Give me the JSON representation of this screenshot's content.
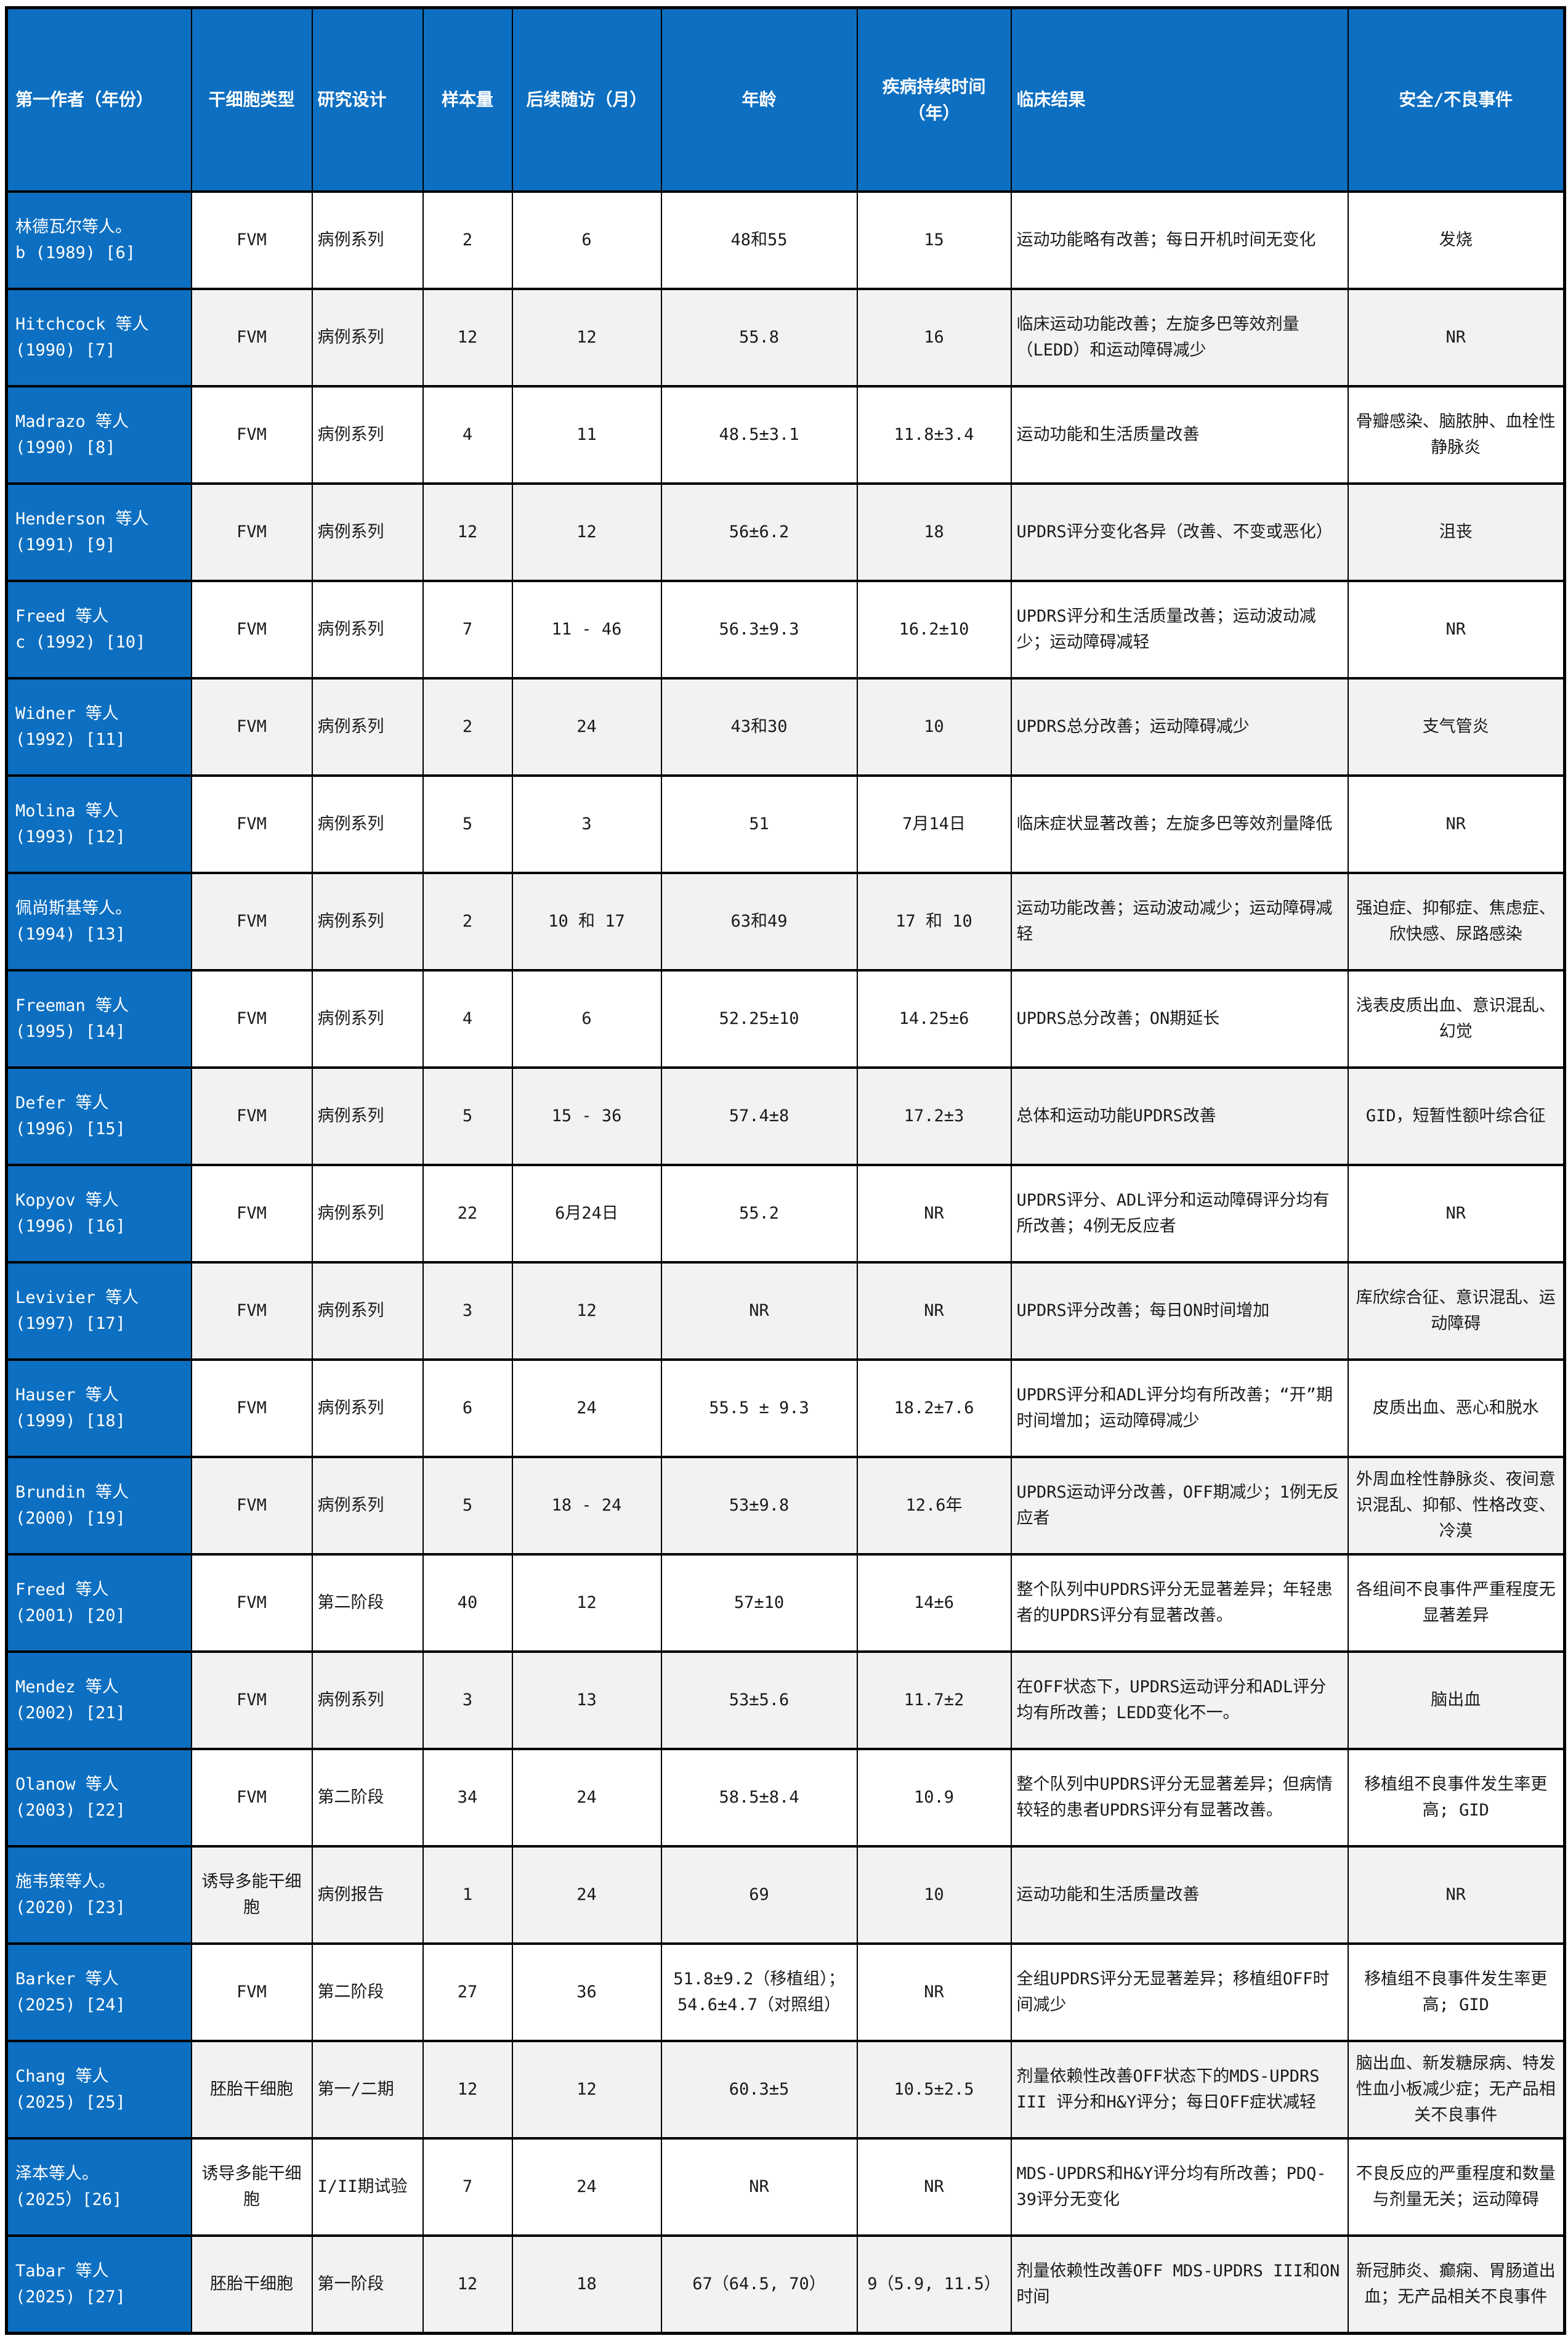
{
  "table": {
    "colors": {
      "header_bg": "#0d6fc1",
      "row_alt_bg": "#f2f2f2",
      "border": "#000000",
      "body_text": "#1a1a1a",
      "header_text": "#ffffff"
    },
    "headers": [
      "第一作者（年份）",
      "干细胞类型",
      "研究设计",
      "样本量",
      "后续随访（月）",
      "年龄",
      "疾病持续时间\n（年）",
      "临床结果",
      "安全/不良事件"
    ],
    "rows": [
      [
        "林德瓦尔等人。\nb (1989) [6]",
        "FVM",
        "病例系列",
        "2",
        "6",
        "48和55",
        "15",
        "运动功能略有改善；每日开机时间无变化",
        "发烧"
      ],
      [
        "Hitchcock 等人\n(1990) [7]",
        "FVM",
        "病例系列",
        "12",
        "12",
        "55.8",
        "16",
        "临床运动功能改善；左旋多巴等效剂量（LEDD）和运动障碍减少",
        "NR"
      ],
      [
        "Madrazo 等人\n(1990) [8]",
        "FVM",
        "病例系列",
        "4",
        "11",
        "48.5±3.1",
        "11.8±3.4",
        "运动功能和生活质量改善",
        "骨瓣感染、脑脓肿、血栓性静脉炎"
      ],
      [
        "Henderson 等人\n(1991) [9]",
        "FVM",
        "病例系列",
        "12",
        "12",
        "56±6.2",
        "18",
        "UPDRS评分变化各异（改善、不变或恶化）",
        "沮丧"
      ],
      [
        "Freed 等人\nc (1992) [10]",
        "FVM",
        "病例系列",
        "7",
        "11 - 46",
        "56.3±9.3",
        "16.2±10",
        "UPDRS评分和生活质量改善；运动波动减少；运动障碍减轻",
        "NR"
      ],
      [
        "Widner 等人\n(1992) [11]",
        "FVM",
        "病例系列",
        "2",
        "24",
        "43和30",
        "10",
        "UPDRS总分改善；运动障碍减少",
        "支气管炎"
      ],
      [
        "Molina 等人\n(1993) [12]",
        "FVM",
        "病例系列",
        "5",
        "3",
        "51",
        "7月14日",
        "临床症状显著改善；左旋多巴等效剂量降低",
        "NR"
      ],
      [
        "佩尚斯基等人。\n(1994) [13]",
        "FVM",
        "病例系列",
        "2",
        "10 和 17",
        "63和49",
        "17 和 10",
        "运动功能改善；运动波动减少；运动障碍减轻",
        "强迫症、抑郁症、焦虑症、欣快感、尿路感染"
      ],
      [
        "Freeman 等人\n(1995) [14]",
        "FVM",
        "病例系列",
        "4",
        "6",
        "52.25±10",
        "14.25±6",
        "UPDRS总分改善；ON期延长",
        "浅表皮质出血、意识混乱、幻觉"
      ],
      [
        "Defer 等人\n(1996) [15]",
        "FVM",
        "病例系列",
        "5",
        "15 - 36",
        "57.4±8",
        "17.2±3",
        "总体和运动功能UPDRS改善",
        "GID，短暂性额叶综合征"
      ],
      [
        "Kopyov 等人\n(1996) [16]",
        "FVM",
        "病例系列",
        "22",
        "6月24日",
        "55.2",
        "NR",
        "UPDRS评分、ADL评分和运动障碍评分均有所改善；4例无反应者",
        "NR"
      ],
      [
        "Levivier 等人\n(1997) [17]",
        "FVM",
        "病例系列",
        "3",
        "12",
        "NR",
        "NR",
        "UPDRS评分改善；每日ON时间增加",
        "库欣综合征、意识混乱、运动障碍"
      ],
      [
        "Hauser 等人\n(1999) [18]",
        "FVM",
        "病例系列",
        "6",
        "24",
        "55.5 ± 9.3",
        "18.2±7.6",
        "UPDRS评分和ADL评分均有所改善；“开”期时间增加；运动障碍减少",
        "皮质出血、恶心和脱水"
      ],
      [
        "Brundin 等人\n(2000) [19]",
        "FVM",
        "病例系列",
        "5",
        "18 - 24",
        "53±9.8",
        "12.6年",
        "UPDRS运动评分改善，OFF期减少；1例无反应者",
        "外周血栓性静脉炎、夜间意识混乱、抑郁、性格改变、冷漠"
      ],
      [
        "Freed 等人\n(2001) [20]",
        "FVM",
        "第二阶段",
        "40",
        "12",
        "57±10",
        "14±6",
        "整个队列中UPDRS评分无显著差异；年轻患者的UPDRS评分有显著改善。",
        "各组间不良事件严重程度无显著差异"
      ],
      [
        "Mendez 等人\n(2002) [21]",
        "FVM",
        "病例系列",
        "3",
        "13",
        "53±5.6",
        "11.7±2",
        "在OFF状态下，UPDRS运动评分和ADL评分均有所改善；LEDD变化不一。",
        "脑出血"
      ],
      [
        "Olanow 等人\n(2003) [22]",
        "FVM",
        "第二阶段",
        "34",
        "24",
        "58.5±8.4",
        "10.9",
        "整个队列中UPDRS评分无显著差异；但病情较轻的患者UPDRS评分有显著改善。",
        "移植组不良事件发生率更高; GID"
      ],
      [
        "施韦策等人。\n(2020) [23]",
        "诱导多能干细胞",
        "病例报告",
        "1",
        "24",
        "69",
        "10",
        "运动功能和生活质量改善",
        "NR"
      ],
      [
        "Barker 等人\n(2025) [24]",
        "FVM",
        "第二阶段",
        "27",
        "36",
        "51.8±9.2（移植组）；54.6±4.7（对照组）",
        "NR",
        "全组UPDRS评分无显著差异；移植组OFF时间减少",
        "移植组不良事件发生率更高; GID"
      ],
      [
        "Chang 等人\n(2025) [25]",
        "胚胎干细胞",
        "第一/二期",
        "12",
        "12",
        "60.3±5",
        "10.5±2.5",
        "剂量依赖性改善OFF状态下的MDS-UPDRS III 评分和H&Y评分；每日OFF症状减轻",
        "脑出血、新发糖尿病、特发性血小板减少症；无产品相关不良事件"
      ],
      [
        "泽本等人。\n(2025）[26]",
        "诱导多能干细胞",
        "I/II期试验",
        "7",
        "24",
        "NR",
        "NR",
        "MDS-UPDRS和H&Y评分均有所改善；PDQ-39评分无变化",
        "不良反应的严重程度和数量与剂量无关；运动障碍"
      ],
      [
        "Tabar 等人\n(2025) [27]",
        "胚胎干细胞",
        "第一阶段",
        "12",
        "18",
        "67（64.5, 70）",
        "9（5.9, 11.5）",
        "剂量依赖性改善OFF MDS-UPDRS III和ON时间",
        "新冠肺炎、癫痫、胃肠道出血；无产品相关不良事件"
      ]
    ]
  }
}
